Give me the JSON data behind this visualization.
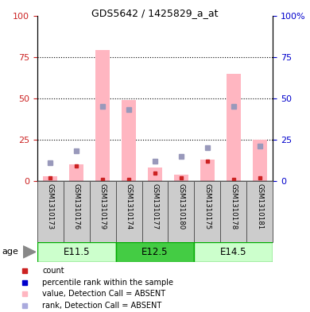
{
  "title": "GDS5642 / 1425829_a_at",
  "samples": [
    "GSM1310173",
    "GSM1310176",
    "GSM1310179",
    "GSM1310174",
    "GSM1310177",
    "GSM1310180",
    "GSM1310175",
    "GSM1310178",
    "GSM1310181"
  ],
  "groups": [
    {
      "label": "E11.5",
      "indices": [
        0,
        1,
        2
      ]
    },
    {
      "label": "E12.5",
      "indices": [
        3,
        4,
        5
      ]
    },
    {
      "label": "E14.5",
      "indices": [
        6,
        7,
        8
      ]
    }
  ],
  "group_colors": [
    "#CCFFCC",
    "#44CC44",
    "#CCFFCC"
  ],
  "pink_bar_heights": [
    3,
    10,
    79,
    49,
    8,
    4,
    13,
    65,
    25
  ],
  "blue_square_y": [
    11,
    18,
    45,
    43,
    12,
    15,
    20,
    45,
    21
  ],
  "red_square_y": [
    2,
    9,
    1,
    1,
    5,
    2,
    12,
    1,
    2
  ],
  "ylim": [
    0,
    100
  ],
  "yticks": [
    0,
    25,
    50,
    75,
    100
  ],
  "pink_color": "#FFB6C1",
  "blue_color": "#9999BB",
  "red_color": "#CC2222",
  "legend_blue_color": "#0000CC",
  "age_label": "age",
  "legend_labels": [
    "count",
    "percentile rank within the sample",
    "value, Detection Call = ABSENT",
    "rank, Detection Call = ABSENT"
  ],
  "legend_colors": [
    "#CC2222",
    "#0000CC",
    "#FFB6C1",
    "#AAAADD"
  ],
  "axis_color_left": "#CC2222",
  "axis_color_right": "#0000CC",
  "group_border_color": "#00AA00",
  "sample_box_color": "#CCCCCC",
  "sample_box_edge": "#555555"
}
